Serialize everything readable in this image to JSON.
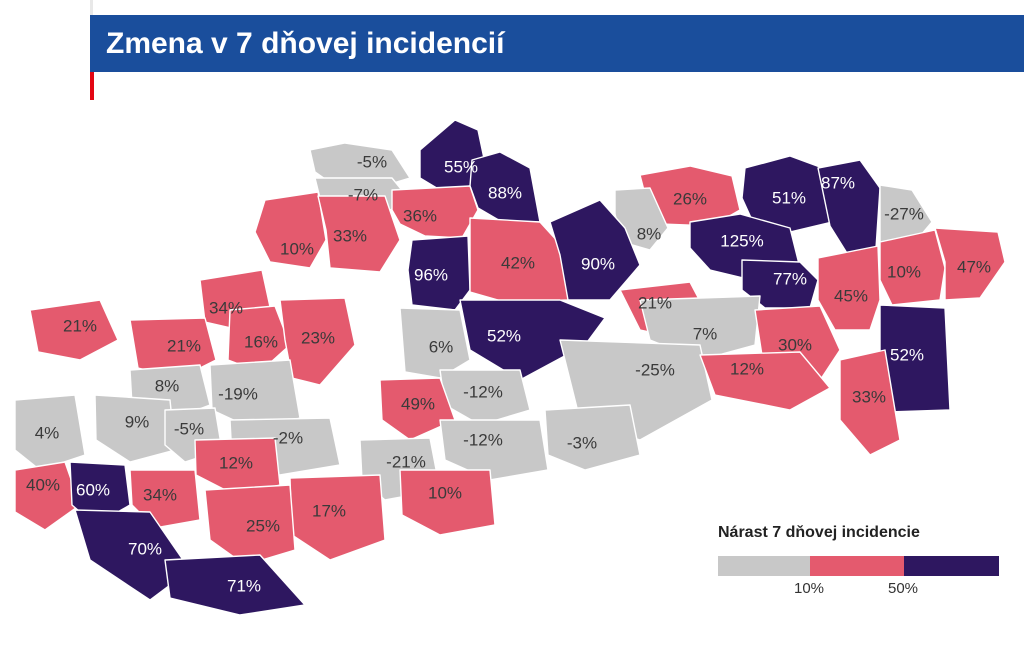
{
  "title": "Zmena v 7 dňovej incidencií",
  "colors": {
    "low": "#c8c8c8",
    "mid": "#e45a6e",
    "high": "#2e1760",
    "header": "#1a4e9c",
    "accent": "#e30613"
  },
  "legend": {
    "title": "Nárast 7 dňovej incidencie",
    "ticks": [
      "10%",
      "50%"
    ]
  },
  "districts": [
    {
      "value": "-5%",
      "cat": "low"
    },
    {
      "value": "55%",
      "cat": "high"
    },
    {
      "value": "88%",
      "cat": "high"
    },
    {
      "value": "-7%",
      "cat": "low"
    },
    {
      "value": "36%",
      "cat": "mid"
    },
    {
      "value": "26%",
      "cat": "mid"
    },
    {
      "value": "51%",
      "cat": "high"
    },
    {
      "value": "87%",
      "cat": "high"
    },
    {
      "value": "-27%",
      "cat": "low"
    },
    {
      "value": "10%",
      "cat": "mid"
    },
    {
      "value": "33%",
      "cat": "mid"
    },
    {
      "value": "8%",
      "cat": "low"
    },
    {
      "value": "125%",
      "cat": "high"
    },
    {
      "value": "96%",
      "cat": "high"
    },
    {
      "value": "42%",
      "cat": "mid"
    },
    {
      "value": "90%",
      "cat": "high"
    },
    {
      "value": "10%",
      "cat": "mid"
    },
    {
      "value": "47%",
      "cat": "mid"
    },
    {
      "value": "77%",
      "cat": "high"
    },
    {
      "value": "45%",
      "cat": "mid"
    },
    {
      "value": "34%",
      "cat": "mid"
    },
    {
      "value": "21%",
      "cat": "mid"
    },
    {
      "value": "21%",
      "cat": "mid"
    },
    {
      "value": "52%",
      "cat": "high"
    },
    {
      "value": "21%",
      "cat": "mid"
    },
    {
      "value": "16%",
      "cat": "mid"
    },
    {
      "value": "23%",
      "cat": "mid"
    },
    {
      "value": "6%",
      "cat": "low"
    },
    {
      "value": "7%",
      "cat": "low"
    },
    {
      "value": "30%",
      "cat": "mid"
    },
    {
      "value": "52%",
      "cat": "high"
    },
    {
      "value": "8%",
      "cat": "low"
    },
    {
      "value": "-19%",
      "cat": "low"
    },
    {
      "value": "-12%",
      "cat": "low"
    },
    {
      "value": "-25%",
      "cat": "low"
    },
    {
      "value": "12%",
      "cat": "mid"
    },
    {
      "value": "49%",
      "cat": "mid"
    },
    {
      "value": "33%",
      "cat": "mid"
    },
    {
      "value": "4%",
      "cat": "low"
    },
    {
      "value": "9%",
      "cat": "low"
    },
    {
      "value": "-5%",
      "cat": "low"
    },
    {
      "value": "-2%",
      "cat": "low"
    },
    {
      "value": "-12%",
      "cat": "low"
    },
    {
      "value": "-3%",
      "cat": "low"
    },
    {
      "value": "12%",
      "cat": "mid"
    },
    {
      "value": "-21%",
      "cat": "low"
    },
    {
      "value": "40%",
      "cat": "mid"
    },
    {
      "value": "60%",
      "cat": "high"
    },
    {
      "value": "34%",
      "cat": "mid"
    },
    {
      "value": "10%",
      "cat": "mid"
    },
    {
      "value": "17%",
      "cat": "mid"
    },
    {
      "value": "25%",
      "cat": "mid"
    },
    {
      "value": "70%",
      "cat": "high"
    },
    {
      "value": "71%",
      "cat": "high"
    }
  ]
}
